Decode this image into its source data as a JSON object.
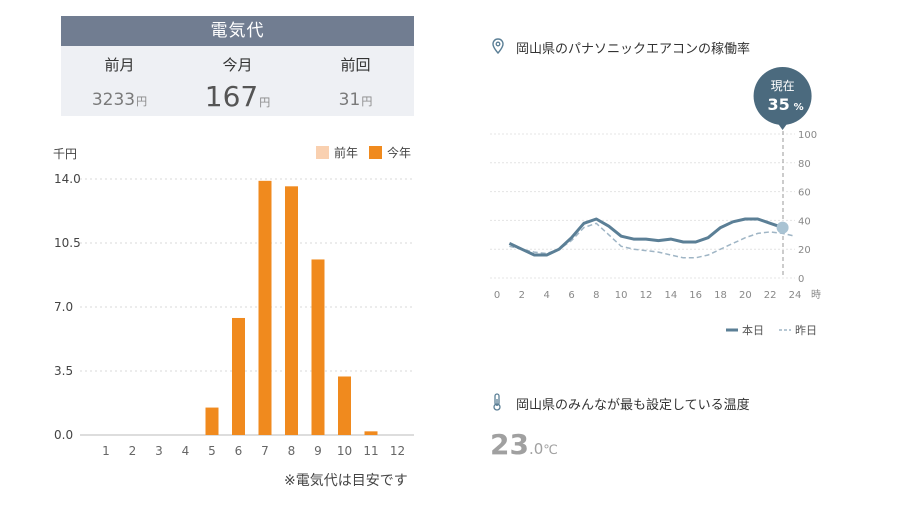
{
  "bill": {
    "title": "電気代",
    "columns": [
      {
        "label": "前月",
        "value": "3233",
        "unit": "円"
      },
      {
        "label": "今月",
        "value": "167",
        "unit": "円"
      },
      {
        "label": "前回",
        "value": "31",
        "unit": "円"
      }
    ]
  },
  "note": "※電気代は目安です",
  "aircon": {
    "rate_title": "岡山県のパナソニックエアコンの稼働率",
    "temp_title": "岡山県のみんなが最も設定している温度",
    "temp_int": "23",
    "temp_dec": ".0",
    "temp_unit": "℃"
  },
  "colors": {
    "header": "#717d91",
    "bar_this_year": "#f08a1e",
    "bar_last_year": "#f9d0b0",
    "line_today": "#5b7f96",
    "line_yesterday": "#9fb5c5",
    "now_badge": "#4b6a7e"
  },
  "chart_data": [
    {
      "type": "bar",
      "unit_label": "千円",
      "ylim": [
        0,
        14
      ],
      "yticks": [
        "14.0",
        "10.5",
        "7.0",
        "3.5",
        "0.0"
      ],
      "categories": [
        "1",
        "2",
        "3",
        "4",
        "5",
        "6",
        "7",
        "8",
        "9",
        "10",
        "11",
        "12"
      ],
      "series": [
        {
          "name": "前年",
          "values": [
            0,
            0,
            0,
            0,
            0,
            0,
            0,
            0,
            0,
            0,
            0,
            0
          ]
        },
        {
          "name": "今年",
          "values": [
            0,
            0,
            0,
            0,
            1.5,
            6.4,
            13.9,
            13.6,
            9.6,
            3.2,
            0.2,
            0
          ]
        }
      ],
      "legend": "top-right",
      "grid": true
    },
    {
      "type": "line",
      "ylim": [
        0,
        100
      ],
      "yticks": [
        "100",
        "80",
        "60",
        "40",
        "20",
        "0"
      ],
      "xticks": [
        "0",
        "2",
        "4",
        "6",
        "8",
        "10",
        "12",
        "14",
        "16",
        "18",
        "20",
        "22",
        "24"
      ],
      "x_unit": "時",
      "current": {
        "label": "現在",
        "value": "35",
        "unit": "%"
      },
      "series": [
        {
          "name": "本日",
          "x": [
            1,
            2,
            3,
            4,
            5,
            6,
            7,
            8,
            9,
            10,
            11,
            12,
            13,
            14,
            15,
            16,
            17,
            18,
            19,
            20,
            21,
            22,
            23
          ],
          "y": [
            24,
            20,
            16,
            16,
            20,
            28,
            38,
            41,
            36,
            29,
            27,
            27,
            26,
            27,
            25,
            25,
            28,
            35,
            39,
            41,
            41,
            38,
            35
          ]
        },
        {
          "name": "昨日",
          "x": [
            1,
            2,
            3,
            4,
            5,
            6,
            7,
            8,
            9,
            10,
            11,
            12,
            13,
            14,
            15,
            16,
            17,
            18,
            19,
            20,
            21,
            22,
            23,
            24
          ],
          "y": [
            22,
            20,
            18,
            17,
            20,
            26,
            35,
            38,
            30,
            22,
            20,
            19,
            18,
            16,
            14,
            14,
            16,
            20,
            24,
            28,
            31,
            32,
            31,
            29
          ]
        }
      ],
      "legend": "bottom-right",
      "grid": true
    }
  ]
}
